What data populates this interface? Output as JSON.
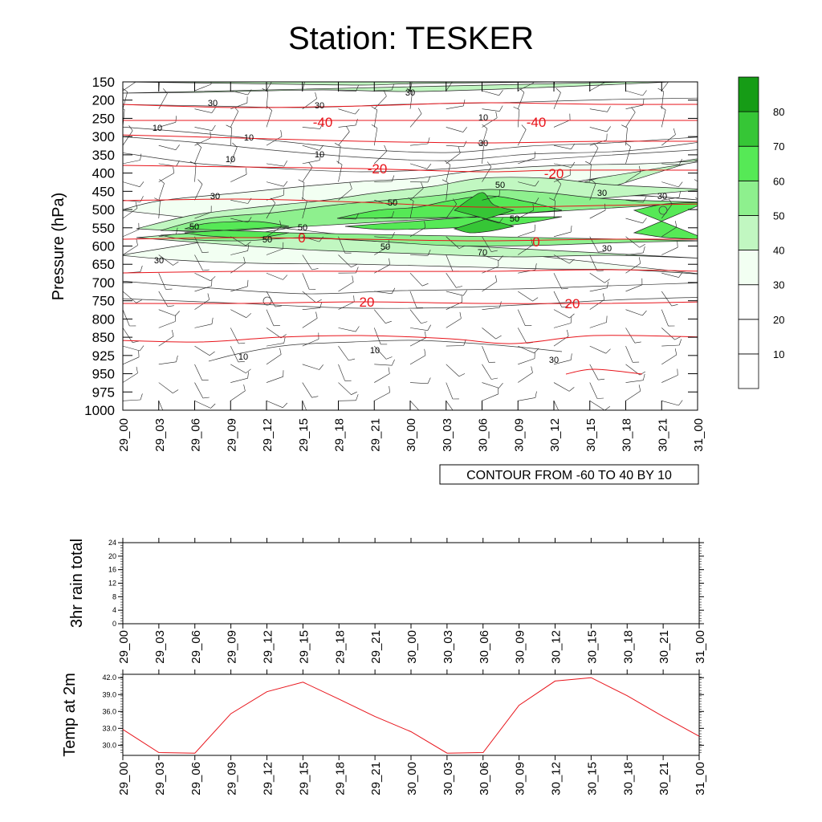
{
  "title": "Station: TESKER",
  "contour_note": "CONTOUR FROM -60 TO 40 BY 10",
  "colors": {
    "red": "#e8141b",
    "c1": "#ffffff",
    "c2": "#f2fff2",
    "c3": "#c1f7c1",
    "c4": "#8ef08e",
    "c5": "#56e956",
    "c6": "#36c636",
    "c7": "#169c16"
  },
  "chart_data": [
    {
      "type": "heatmap",
      "title": "Station: TESKER",
      "ylabel": "Pressure (hPa)",
      "xlabel": "",
      "x_ticks": [
        "29_00",
        "29_03",
        "29_06",
        "29_09",
        "29_12",
        "29_15",
        "29_18",
        "29_21",
        "30_00",
        "30_03",
        "30_06",
        "30_09",
        "30_12",
        "30_15",
        "30_18",
        "30_21",
        "31_00"
      ],
      "y_ticks": [
        "150",
        "200",
        "250",
        "300",
        "350",
        "400",
        "450",
        "500",
        "550",
        "600",
        "650",
        "700",
        "750",
        "800",
        "850",
        "925",
        "950",
        "975",
        "1000"
      ],
      "colorbar_levels": [
        10,
        20,
        30,
        40,
        50,
        60,
        70,
        80
      ],
      "colorbar_labels": [
        "10",
        "20",
        "30",
        "40",
        "50",
        "60",
        "70",
        "80"
      ],
      "humidity_contour_labels": [
        "30",
        "30",
        "30",
        "10",
        "10",
        "10",
        "10",
        "10",
        "30",
        "30",
        "50",
        "50",
        "50",
        "50",
        "50",
        "70",
        "50",
        "50",
        "30",
        "30",
        "30",
        "30",
        "10",
        "10",
        "30"
      ],
      "temperature_contour_labels": [
        "-40",
        "-40",
        "-20",
        "-20",
        "0",
        "0",
        "20",
        "20"
      ],
      "annotation": "CONTOUR FROM -60 TO 40 BY 10"
    },
    {
      "type": "line",
      "ylabel": "3hr rain total",
      "x": [
        "29_00",
        "29_03",
        "29_06",
        "29_09",
        "29_12",
        "29_15",
        "29_18",
        "29_21",
        "30_00",
        "30_03",
        "30_06",
        "30_09",
        "30_12",
        "30_15",
        "30_18",
        "30_21",
        "31_00"
      ],
      "y_ticks": [
        "0",
        "4",
        "8",
        "12",
        "16",
        "20",
        "24"
      ],
      "ylim": [
        0,
        24
      ],
      "series": [
        {
          "values": [
            0,
            0,
            0,
            0,
            0,
            0,
            0,
            0,
            0,
            0,
            0,
            0,
            0,
            0,
            0,
            0,
            0
          ]
        }
      ]
    },
    {
      "type": "line",
      "ylabel": "Temp at 2m",
      "x": [
        "29_00",
        "29_03",
        "29_06",
        "29_09",
        "29_12",
        "29_15",
        "29_18",
        "29_21",
        "30_00",
        "30_03",
        "30_06",
        "30_09",
        "30_12",
        "30_15",
        "30_18",
        "30_21",
        "31_00"
      ],
      "y_ticks": [
        "30.0",
        "33.0",
        "36.0",
        "39.0",
        "42.0"
      ],
      "ylim": [
        28.2,
        42.6
      ],
      "series": [
        {
          "values": [
            32.8,
            28.7,
            28.6,
            35.6,
            39.5,
            41.2,
            38.2,
            35.1,
            32.4,
            28.6,
            28.7,
            37.1,
            41.4,
            42.0,
            38.8,
            35.1,
            31.6
          ]
        }
      ]
    }
  ]
}
